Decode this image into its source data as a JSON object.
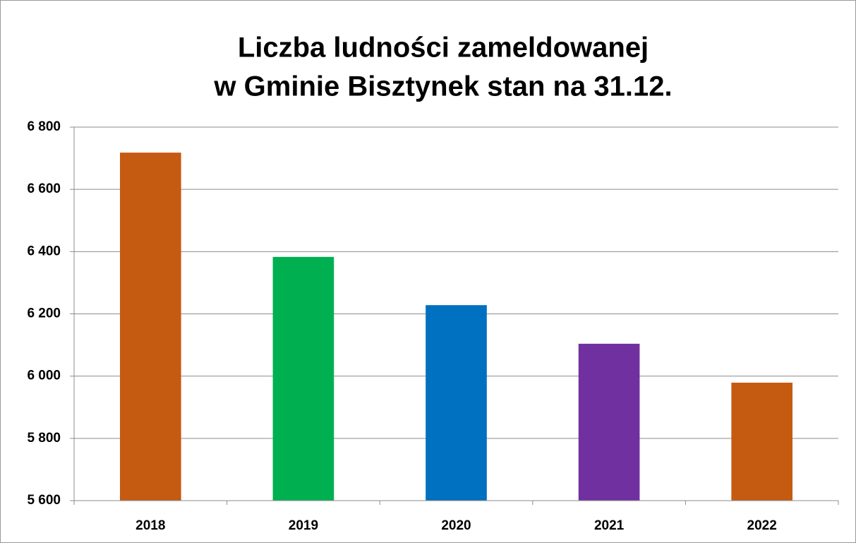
{
  "chart_data": {
    "type": "bar",
    "title": [
      "Liczba ludności zameldowanej",
      "w Gminie Bisztynek stan na 31.12."
    ],
    "categories": [
      "2018",
      "2019",
      "2020",
      "2021",
      "2022"
    ],
    "values": [
      6718,
      6383,
      6228,
      6104,
      5979
    ],
    "colors": [
      "#c55a11",
      "#00b050",
      "#0070c0",
      "#7030a0",
      "#c55a11"
    ],
    "ylim": [
      5600,
      6800
    ],
    "yticks": [
      {
        "value": 5600,
        "label": "5 600"
      },
      {
        "value": 5800,
        "label": "5 800"
      },
      {
        "value": 6000,
        "label": "6 000"
      },
      {
        "value": 6200,
        "label": "6 200"
      },
      {
        "value": 6400,
        "label": "6 400"
      },
      {
        "value": 6600,
        "label": "6 600"
      },
      {
        "value": 6800,
        "label": "6 800"
      }
    ],
    "grid": true
  }
}
